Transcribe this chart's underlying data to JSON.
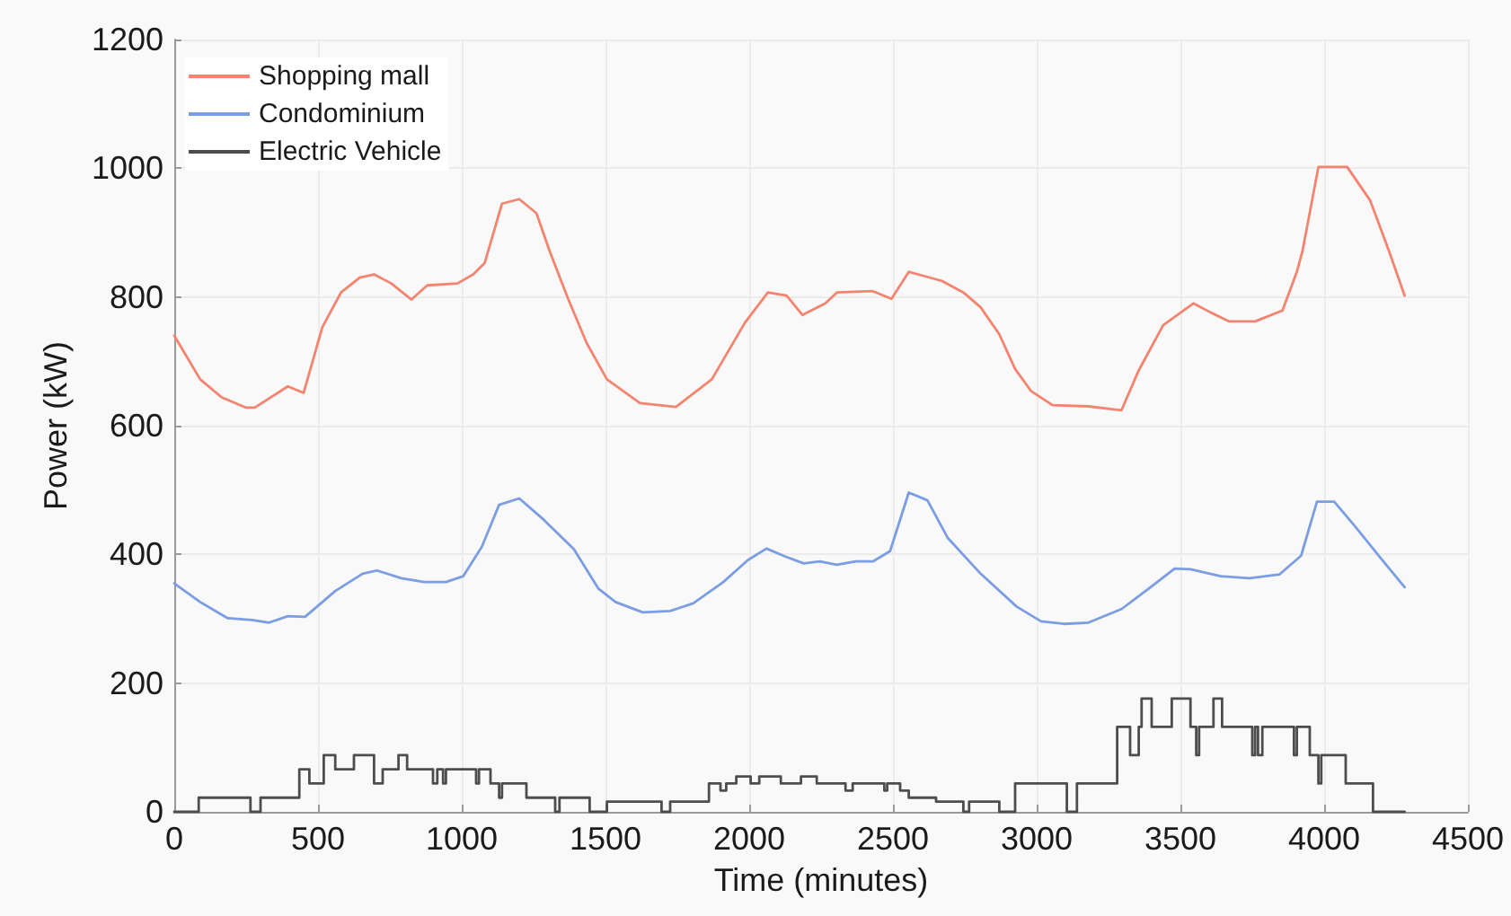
{
  "chart_data": {
    "type": "line",
    "xlabel": "Time (minutes)",
    "ylabel": "Power (kW)",
    "xlim": [
      0,
      4500
    ],
    "xticks": [
      0,
      500,
      1000,
      1500,
      2000,
      2500,
      3000,
      3500,
      4000,
      4500
    ],
    "ylim": [
      0,
      1200
    ],
    "yticks": [
      0,
      200,
      400,
      600,
      800,
      1000,
      1200
    ],
    "grid": true,
    "legend": "top left",
    "marker": "none",
    "series": [
      {
        "name": "Shopping mall",
        "color": "#f4846f",
        "x": [
          0,
          90,
          165,
          250,
          280,
          395,
          450,
          515,
          580,
          645,
          695,
          755,
          825,
          880,
          985,
          1040,
          1080,
          1140,
          1200,
          1260,
          1305,
          1370,
          1435,
          1505,
          1620,
          1745,
          1870,
          1985,
          2065,
          2130,
          2185,
          2265,
          2305,
          2430,
          2495,
          2555,
          2670,
          2745,
          2805,
          2870,
          2925,
          2980,
          3055,
          3180,
          3295,
          3355,
          3440,
          3545,
          3605,
          3670,
          3760,
          3855,
          3905,
          3925,
          3980,
          4080,
          4160,
          4225,
          4280
        ],
        "values": [
          740,
          672,
          644,
          628,
          628,
          661,
          651,
          753,
          807,
          830,
          835,
          821,
          796,
          818,
          821,
          835,
          853,
          945,
          952,
          930,
          872,
          797,
          728,
          672,
          635,
          629,
          672,
          760,
          807,
          802,
          772,
          790,
          807,
          809,
          797,
          839,
          825,
          807,
          784,
          742,
          688,
          654,
          632,
          630,
          624,
          686,
          756,
          790,
          776,
          762,
          762,
          779,
          839,
          872,
          1002,
          1002,
          950,
          872,
          802
        ]
      },
      {
        "name": "Condominium",
        "color": "#7b9de3",
        "x": [
          0,
          90,
          185,
          270,
          330,
          395,
          455,
          560,
          655,
          705,
          790,
          870,
          945,
          1005,
          1070,
          1130,
          1200,
          1285,
          1390,
          1475,
          1535,
          1630,
          1725,
          1805,
          1910,
          1995,
          2060,
          2130,
          2190,
          2245,
          2305,
          2370,
          2430,
          2490,
          2555,
          2620,
          2690,
          2805,
          2930,
          3015,
          3095,
          3180,
          3295,
          3390,
          3480,
          3535,
          3640,
          3740,
          3845,
          3920,
          3975,
          4035,
          4105,
          4190,
          4280
        ],
        "values": [
          355,
          326,
          301,
          298,
          294,
          304,
          303,
          343,
          370,
          375,
          363,
          357,
          357,
          366,
          412,
          477,
          487,
          454,
          408,
          347,
          326,
          310,
          312,
          324,
          357,
          391,
          409,
          396,
          386,
          389,
          384,
          389,
          389,
          405,
          496,
          484,
          426,
          370,
          319,
          296,
          292,
          294,
          315,
          347,
          378,
          377,
          366,
          363,
          369,
          398,
          482,
          482,
          445,
          398,
          349
        ]
      },
      {
        "name": "Electric Vehicle",
        "color": "#4d4d4d",
        "type": "step",
        "x": [
          0,
          85,
          265,
          300,
          435,
          470,
          520,
          560,
          625,
          695,
          725,
          780,
          810,
          900,
          915,
          935,
          945,
          1050,
          1060,
          1100,
          1130,
          1140,
          1225,
          1325,
          1340,
          1445,
          1505,
          1695,
          1725,
          1860,
          1900,
          1920,
          1955,
          2005,
          2035,
          2110,
          2180,
          2235,
          2335,
          2360,
          2470,
          2480,
          2525,
          2555,
          2650,
          2745,
          2765,
          2870,
          2925,
          3105,
          3140,
          3280,
          3325,
          3355,
          3365,
          3400,
          3470,
          3535,
          3555,
          3565,
          3615,
          3645,
          3750,
          3760,
          3770,
          3785,
          3895,
          3905,
          3950,
          3980,
          3990,
          4075,
          4170,
          4280
        ],
        "values": [
          0,
          22,
          0,
          22,
          66,
          44,
          88,
          66,
          88,
          44,
          66,
          88,
          66,
          44,
          66,
          44,
          66,
          44,
          66,
          44,
          22,
          44,
          22,
          0,
          22,
          0,
          16,
          0,
          16,
          44,
          33,
          44,
          55,
          44,
          55,
          44,
          55,
          44,
          33,
          44,
          33,
          44,
          33,
          22,
          16,
          0,
          16,
          0,
          44,
          0,
          44,
          132,
          88,
          132,
          176,
          132,
          176,
          132,
          88,
          132,
          176,
          132,
          88,
          132,
          88,
          132,
          88,
          132,
          88,
          44,
          88,
          44,
          0,
          0
        ]
      }
    ]
  }
}
